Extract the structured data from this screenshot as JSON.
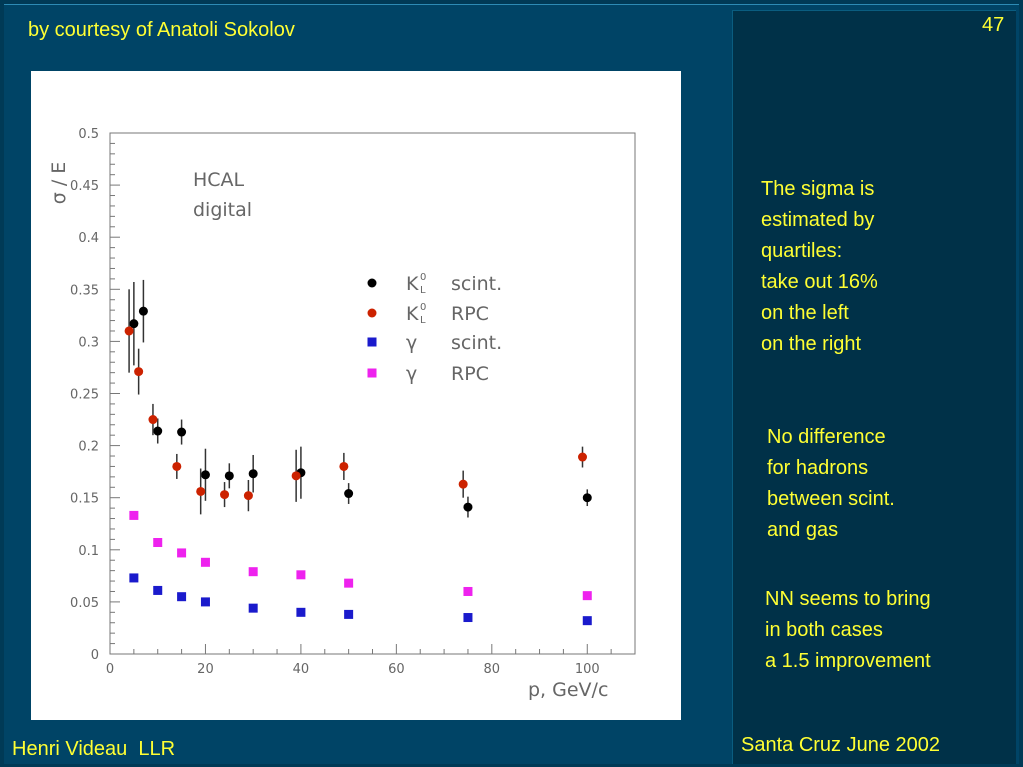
{
  "slide": {
    "courtesy": "by courtesy of Anatoli Sokolov",
    "page_number": "47",
    "author": "Henri Videau  LLR",
    "conference": "Santa Cruz June 2002"
  },
  "notes": [
    [
      "The sigma is",
      "estimated by",
      "quartiles:",
      "take out 16%",
      "on the left",
      "on the right"
    ],
    [
      "No difference",
      "for hadrons",
      "between scint.",
      "and gas"
    ],
    [
      "NN seems to bring",
      "in both cases",
      "a 1.5 improvement"
    ]
  ],
  "colors": {
    "background": "#004466",
    "text": "#ffff33",
    "k0_scint": "#000000",
    "k0_rpc": "#cc2200",
    "gamma_scint": "#1a1acc",
    "gamma_rpc": "#ee22ee"
  },
  "chart_data": {
    "type": "scatter",
    "annotation": [
      "HCAL",
      "digital"
    ],
    "xlabel": "p, GeV/c",
    "ylabel": "σ / E",
    "xlim": [
      0,
      110
    ],
    "ylim": [
      0,
      0.5
    ],
    "x_ticks": [
      "0",
      "20",
      "40",
      "60",
      "80",
      "100"
    ],
    "x_tick_values": [
      0,
      20,
      40,
      60,
      80,
      100
    ],
    "y_ticks": [
      "0",
      "0.05",
      "0.1",
      "0.15",
      "0.2",
      "0.25",
      "0.3",
      "0.35",
      "0.4",
      "0.45",
      "0.5"
    ],
    "y_tick_values": [
      0,
      0.05,
      0.1,
      0.15,
      0.2,
      0.25,
      0.3,
      0.35,
      0.4,
      0.45,
      0.5
    ],
    "grid": false,
    "legend_position": "top-right",
    "series": [
      {
        "name": "K⁰L  scint.",
        "label_particle": "K",
        "label_detector": "scint.",
        "marker": "circle",
        "color_key": "k0_scint",
        "points": [
          {
            "x": 5,
            "y": 0.317,
            "err": 0.04
          },
          {
            "x": 7,
            "y": 0.329,
            "err": 0.03
          },
          {
            "x": 10,
            "y": 0.214,
            "err": 0.012
          },
          {
            "x": 15,
            "y": 0.213,
            "err": 0.012
          },
          {
            "x": 20,
            "y": 0.172,
            "err": 0.025
          },
          {
            "x": 25,
            "y": 0.171,
            "err": 0.012
          },
          {
            "x": 30,
            "y": 0.173,
            "err": 0.018
          },
          {
            "x": 40,
            "y": 0.174,
            "err": 0.025
          },
          {
            "x": 50,
            "y": 0.154,
            "err": 0.01
          },
          {
            "x": 75,
            "y": 0.141,
            "err": 0.01
          },
          {
            "x": 100,
            "y": 0.15,
            "err": 0.008
          }
        ]
      },
      {
        "name": "K⁰L  RPC",
        "label_particle": "K",
        "label_detector": "RPC",
        "marker": "circle",
        "color_key": "k0_rpc",
        "points": [
          {
            "x": 4,
            "y": 0.31,
            "err": 0.04
          },
          {
            "x": 6,
            "y": 0.271,
            "err": 0.022
          },
          {
            "x": 9,
            "y": 0.225,
            "err": 0.015
          },
          {
            "x": 14,
            "y": 0.18,
            "err": 0.012
          },
          {
            "x": 19,
            "y": 0.156,
            "err": 0.022
          },
          {
            "x": 24,
            "y": 0.153,
            "err": 0.012
          },
          {
            "x": 29,
            "y": 0.152,
            "err": 0.015
          },
          {
            "x": 39,
            "y": 0.171,
            "err": 0.025
          },
          {
            "x": 49,
            "y": 0.18,
            "err": 0.013
          },
          {
            "x": 74,
            "y": 0.163,
            "err": 0.013
          },
          {
            "x": 99,
            "y": 0.189,
            "err": 0.01
          }
        ]
      },
      {
        "name": "γ  scint.",
        "label_particle": "γ",
        "label_detector": "scint.",
        "marker": "square",
        "color_key": "gamma_scint",
        "points": [
          {
            "x": 5,
            "y": 0.073
          },
          {
            "x": 10,
            "y": 0.061
          },
          {
            "x": 15,
            "y": 0.055
          },
          {
            "x": 20,
            "y": 0.05
          },
          {
            "x": 30,
            "y": 0.044
          },
          {
            "x": 40,
            "y": 0.04
          },
          {
            "x": 50,
            "y": 0.038
          },
          {
            "x": 75,
            "y": 0.035
          },
          {
            "x": 100,
            "y": 0.032
          }
        ]
      },
      {
        "name": "γ  RPC",
        "label_particle": "γ",
        "label_detector": "RPC",
        "marker": "square",
        "color_key": "gamma_rpc",
        "points": [
          {
            "x": 5,
            "y": 0.133
          },
          {
            "x": 10,
            "y": 0.107
          },
          {
            "x": 15,
            "y": 0.097
          },
          {
            "x": 20,
            "y": 0.088
          },
          {
            "x": 30,
            "y": 0.079
          },
          {
            "x": 40,
            "y": 0.076
          },
          {
            "x": 50,
            "y": 0.068
          },
          {
            "x": 75,
            "y": 0.06
          },
          {
            "x": 100,
            "y": 0.056
          }
        ]
      }
    ]
  }
}
